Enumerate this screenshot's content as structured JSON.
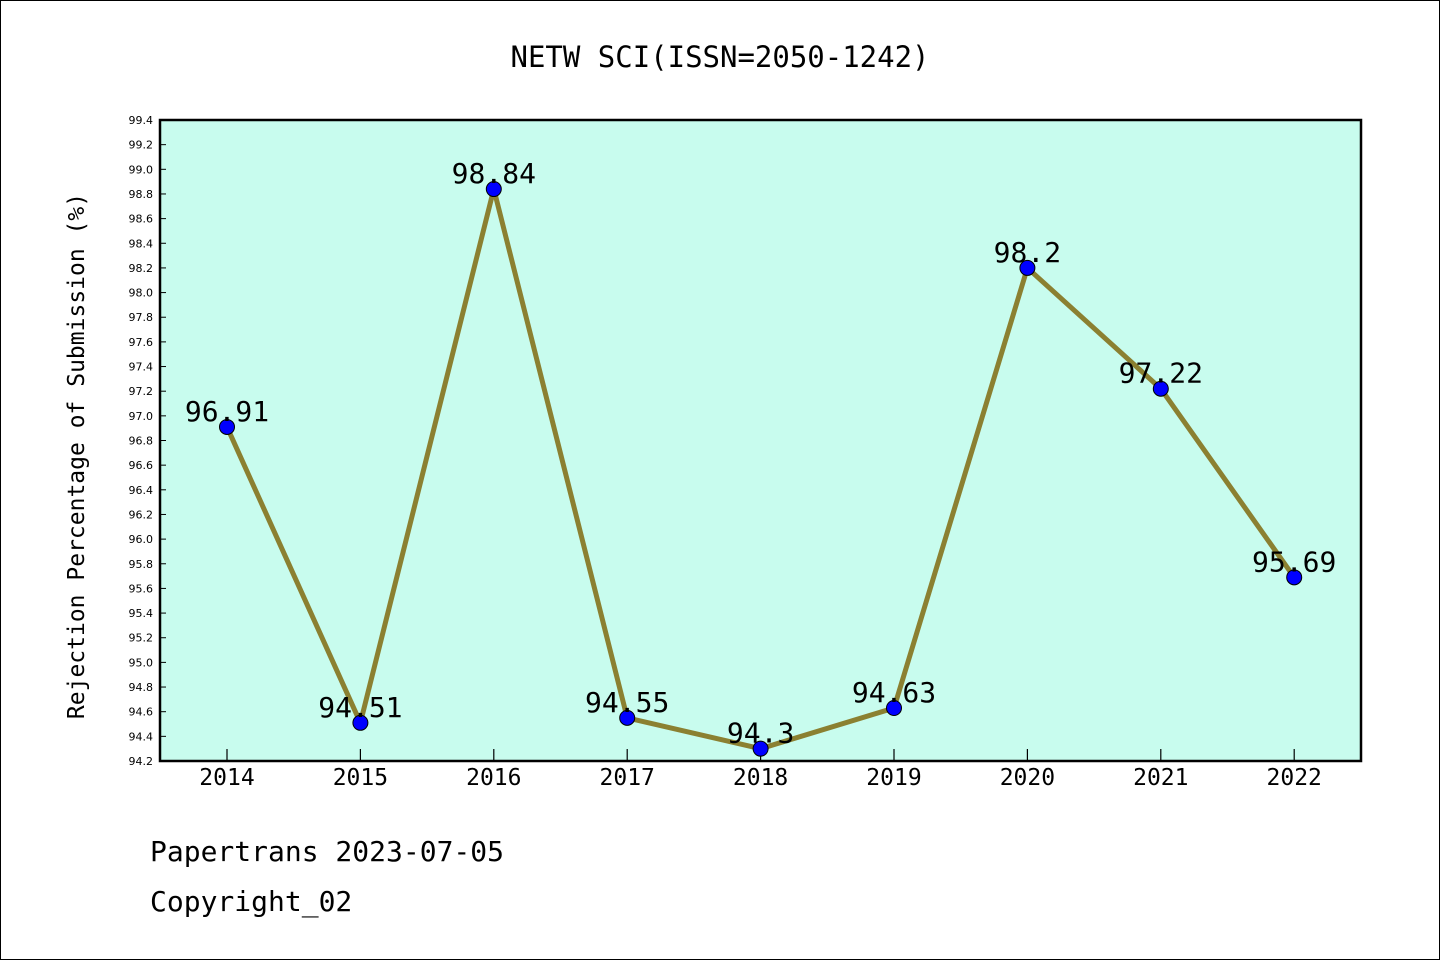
{
  "chart_data": {
    "type": "line",
    "title": "NETW SCI(ISSN=2050-1242)",
    "xlabel": "",
    "ylabel": "Rejection Percentage of Submission (%)",
    "categories": [
      "2014",
      "2015",
      "2016",
      "2017",
      "2018",
      "2019",
      "2020",
      "2021",
      "2022"
    ],
    "series": [
      {
        "values": [
          96.91,
          94.51,
          98.84,
          94.55,
          94.3,
          94.63,
          98.2,
          97.22,
          95.69
        ],
        "labels": [
          "96.91",
          "94.51",
          "98.84",
          "94.55",
          "94.3",
          "94.63",
          "98.2",
          "97.22",
          "95.69"
        ]
      }
    ],
    "ylim": [
      94.2,
      99.4
    ],
    "yticks": [
      "94.2",
      "94.4",
      "94.6",
      "94.8",
      "95.0",
      "95.2",
      "95.4",
      "95.6",
      "95.8",
      "96.0",
      "96.2",
      "96.4",
      "96.6",
      "96.8",
      "97.0",
      "97.2",
      "97.4",
      "97.6",
      "97.8",
      "98.0",
      "98.2",
      "98.4",
      "98.6",
      "98.8",
      "99.0",
      "99.2",
      "99.4"
    ],
    "grid": false,
    "colors": {
      "plot_background": "#c8fcee",
      "line": "#8b8031",
      "marker": "#0000ff"
    }
  },
  "footer": {
    "line1": "Papertrans 2023-07-05",
    "line2": "Copyright_02"
  }
}
